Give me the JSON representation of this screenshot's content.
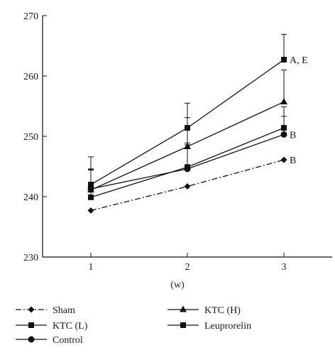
{
  "chart_data": {
    "type": "line",
    "title": "",
    "xlabel": "(w)",
    "ylabel": "",
    "x": [
      1,
      2,
      3
    ],
    "xlim": [
      0.5,
      3.5
    ],
    "ylim": [
      230,
      270
    ],
    "yticks": [
      230,
      240,
      250,
      260,
      270
    ],
    "xticks": [
      1,
      2,
      3
    ],
    "grid": false,
    "legend_position": "bottom",
    "series": [
      {
        "name": "Sham",
        "marker": "diamond",
        "line_style": "dashdot",
        "values": [
          237.7,
          241.7,
          246.1
        ],
        "error": [
          0,
          0,
          0
        ]
      },
      {
        "name": "KTC (L)",
        "marker": "square",
        "line_style": "solid",
        "values": [
          239.9,
          244.9,
          251.4
        ],
        "error": [
          4.5,
          4.0,
          3.5
        ]
      },
      {
        "name": "Control",
        "marker": "circle",
        "line_style": "solid",
        "values": [
          241.3,
          244.6,
          250.3
        ],
        "error": [
          3.2,
          4.0,
          3.0
        ]
      },
      {
        "name": "KTC (H)",
        "marker": "triangle",
        "line_style": "solid",
        "values": [
          241.1,
          248.3,
          255.7
        ],
        "error": [
          3.5,
          4.8,
          5.3
        ]
      },
      {
        "name": "Leuprorelin",
        "marker": "square",
        "line_style": "solid",
        "values": [
          242.0,
          251.4,
          262.7
        ],
        "error": [
          4.6,
          4.1,
          4.2
        ]
      }
    ],
    "annotations": [
      {
        "text": "A, E",
        "x": 3,
        "y": 262.7
      },
      {
        "text": "B",
        "x": 3,
        "y": 250.3
      },
      {
        "text": "B",
        "x": 3,
        "y": 246.1
      }
    ]
  }
}
